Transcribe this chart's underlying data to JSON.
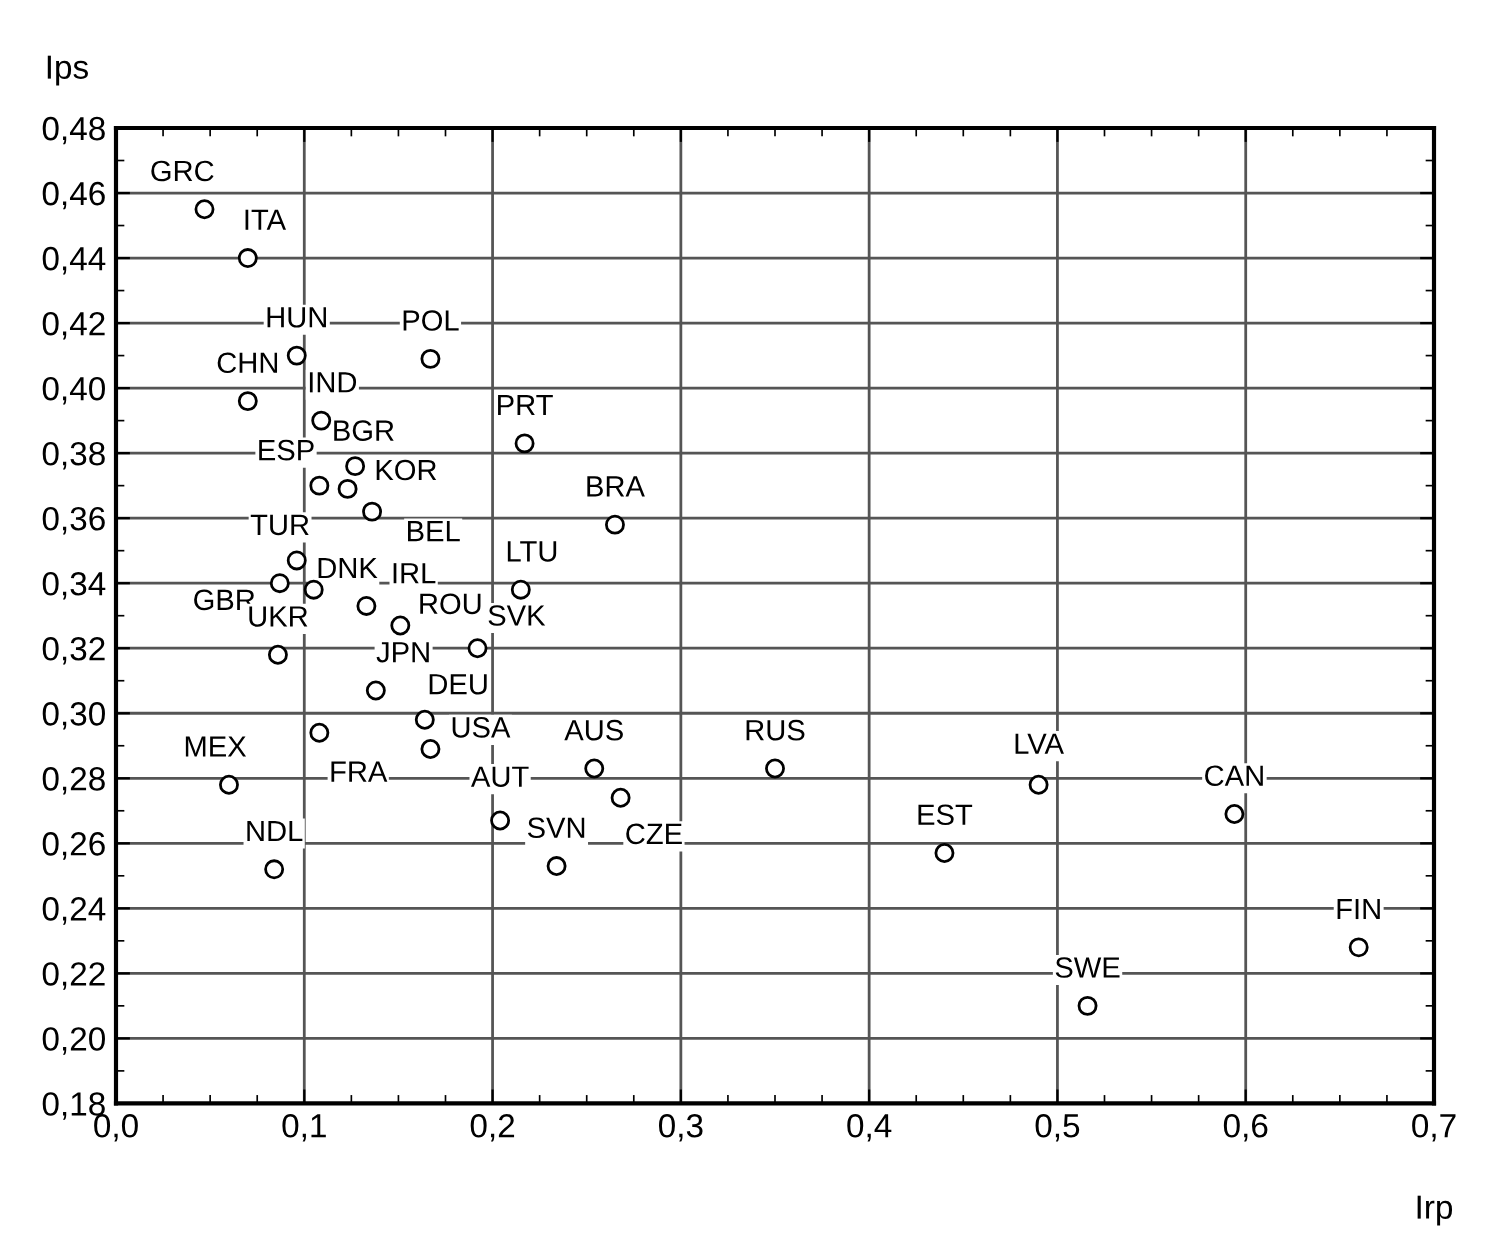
{
  "chart_data": {
    "type": "scatter",
    "xlabel": "Irp",
    "ylabel": "Ips",
    "xlim": [
      0.0,
      0.7
    ],
    "ylim": [
      0.18,
      0.48
    ],
    "xticks": [
      {
        "value": 0.0,
        "label": "0,0"
      },
      {
        "value": 0.1,
        "label": "0,1"
      },
      {
        "value": 0.2,
        "label": "0,2"
      },
      {
        "value": 0.3,
        "label": "0,3"
      },
      {
        "value": 0.4,
        "label": "0,4"
      },
      {
        "value": 0.5,
        "label": "0,5"
      },
      {
        "value": 0.6,
        "label": "0,6"
      },
      {
        "value": 0.7,
        "label": "0,7"
      }
    ],
    "yticks": [
      {
        "value": 0.18,
        "label": "0,18"
      },
      {
        "value": 0.2,
        "label": "0,20"
      },
      {
        "value": 0.22,
        "label": "0,22"
      },
      {
        "value": 0.24,
        "label": "0,24"
      },
      {
        "value": 0.26,
        "label": "0,26"
      },
      {
        "value": 0.28,
        "label": "0,28"
      },
      {
        "value": 0.3,
        "label": "0,30"
      },
      {
        "value": 0.32,
        "label": "0,32"
      },
      {
        "value": 0.34,
        "label": "0,34"
      },
      {
        "value": 0.36,
        "label": "0,36"
      },
      {
        "value": 0.38,
        "label": "0,38"
      },
      {
        "value": 0.4,
        "label": "0,40"
      },
      {
        "value": 0.42,
        "label": "0,42"
      },
      {
        "value": 0.44,
        "label": "0,44"
      },
      {
        "value": 0.46,
        "label": "0,46"
      },
      {
        "value": 0.48,
        "label": "0,48"
      }
    ],
    "grid": true,
    "marker": "circle",
    "series": [
      {
        "color": "#000000",
        "x": [
          0.047,
          0.07,
          0.096,
          0.167,
          0.07,
          0.109,
          0.217,
          0.127,
          0.108,
          0.123,
          0.136,
          0.096,
          0.087,
          0.105,
          0.133,
          0.215,
          0.151,
          0.086,
          0.192,
          0.138,
          0.164,
          0.108,
          0.167,
          0.06,
          0.254,
          0.268,
          0.204,
          0.234,
          0.084,
          0.265,
          0.35,
          0.49,
          0.594,
          0.44,
          0.66,
          0.516
        ],
        "values": [
          0.455,
          0.44,
          0.41,
          0.409,
          0.396,
          0.39,
          0.383,
          0.376,
          0.37,
          0.369,
          0.362,
          0.347,
          0.34,
          0.338,
          0.333,
          0.338,
          0.327,
          0.318,
          0.32,
          0.307,
          0.298,
          0.294,
          0.289,
          0.278,
          0.283,
          0.274,
          0.267,
          0.253,
          0.252,
          0.358,
          0.283,
          0.278,
          0.269,
          0.257,
          0.228,
          0.21
        ]
      }
    ],
    "annotations": [
      {
        "text": "GRC",
        "x": 0.047,
        "y": 0.455
      },
      {
        "text": "ITA",
        "x": 0.07,
        "y": 0.44
      },
      {
        "text": "HUN",
        "x": 0.096,
        "y": 0.41
      },
      {
        "text": "POL",
        "x": 0.167,
        "y": 0.409
      },
      {
        "text": "CHN",
        "x": 0.07,
        "y": 0.396
      },
      {
        "text": "IND",
        "x": 0.109,
        "y": 0.39
      },
      {
        "text": "PRT",
        "x": 0.217,
        "y": 0.383
      },
      {
        "text": "BGR",
        "x": 0.127,
        "y": 0.376
      },
      {
        "text": "ESP",
        "x": 0.108,
        "y": 0.37
      },
      {
        "text": "KOR",
        "x": 0.123,
        "y": 0.369
      },
      {
        "text": "BEL",
        "x": 0.136,
        "y": 0.362
      },
      {
        "text": "TUR",
        "x": 0.096,
        "y": 0.347
      },
      {
        "text": "GBR",
        "x": 0.087,
        "y": 0.34
      },
      {
        "text": "DNK",
        "x": 0.105,
        "y": 0.338
      },
      {
        "text": "IRL",
        "x": 0.133,
        "y": 0.333
      },
      {
        "text": "LTU",
        "x": 0.215,
        "y": 0.338
      },
      {
        "text": "ROU",
        "x": 0.151,
        "y": 0.327
      },
      {
        "text": "UKR",
        "x": 0.086,
        "y": 0.318
      },
      {
        "text": "SVK",
        "x": 0.192,
        "y": 0.32
      },
      {
        "text": "JPN",
        "x": 0.138,
        "y": 0.307
      },
      {
        "text": "DEU",
        "x": 0.164,
        "y": 0.298
      },
      {
        "text": "FRA",
        "x": 0.108,
        "y": 0.294
      },
      {
        "text": "USA",
        "x": 0.167,
        "y": 0.289
      },
      {
        "text": "MEX",
        "x": 0.06,
        "y": 0.278
      },
      {
        "text": "AUS",
        "x": 0.254,
        "y": 0.283
      },
      {
        "text": "CZE",
        "x": 0.268,
        "y": 0.274
      },
      {
        "text": "AUT",
        "x": 0.204,
        "y": 0.267
      },
      {
        "text": "SVN",
        "x": 0.234,
        "y": 0.253
      },
      {
        "text": "NDL",
        "x": 0.084,
        "y": 0.252
      },
      {
        "text": "BRA",
        "x": 0.265,
        "y": 0.358
      },
      {
        "text": "RUS",
        "x": 0.35,
        "y": 0.283
      },
      {
        "text": "LVA",
        "x": 0.49,
        "y": 0.278
      },
      {
        "text": "CAN",
        "x": 0.594,
        "y": 0.269
      },
      {
        "text": "EST",
        "x": 0.44,
        "y": 0.257
      },
      {
        "text": "FIN",
        "x": 0.66,
        "y": 0.228
      },
      {
        "text": "SWE",
        "x": 0.516,
        "y": 0.21
      }
    ]
  }
}
